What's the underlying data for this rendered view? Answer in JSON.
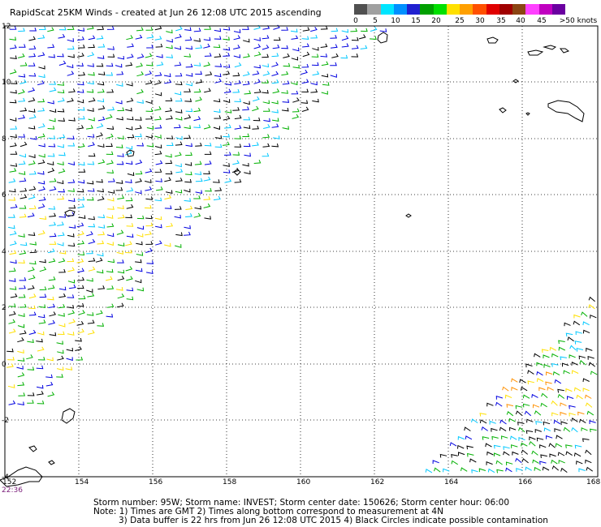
{
  "title": "RapidScat 25KM Winds - created at Jun 26 12:08 UTC 2015 ascending",
  "colorbar": {
    "colors": [
      "#505050",
      "#a0a0a0",
      "#00e5ff",
      "#0090ff",
      "#2020d0",
      "#00a000",
      "#00e000",
      "#ffe000",
      "#ffa000",
      "#ff5000",
      "#e00000",
      "#a00000",
      "#8b4513",
      "#ff40ff",
      "#c000c0",
      "#6a00a0"
    ],
    "labels": [
      "0",
      "5",
      "10",
      "15",
      "20",
      "25",
      "30",
      "35",
      "40",
      "45",
      ">50 knots"
    ]
  },
  "map": {
    "lon_labels": [
      "152",
      "154",
      "156",
      "158",
      "160",
      "162",
      "164",
      "166",
      "168"
    ],
    "lat_labels": [
      "12",
      "10",
      "8",
      "6",
      "4",
      "2",
      "0",
      "-2",
      "-4"
    ],
    "time_label": "22:36"
  },
  "footer": {
    "line1": "Storm number: 95W;  Storm name: INVEST;  Storm center date: 150626;  Storm center hour: 06:00",
    "line2": "Note: 1) Times are GMT  2) Times along bottom correspond to measurement at 4N",
    "line3": "3) Data buffer is 22 hrs from Jun 26 12:08 UTC 2015  4) Black Circles indicate possible contamination"
  },
  "wind_colors": {
    "black": "#000000",
    "cyan": "#00c8ff",
    "blue": "#0000e0",
    "green": "#00b000",
    "yellow": "#ffe000",
    "orange": "#ff9000"
  }
}
